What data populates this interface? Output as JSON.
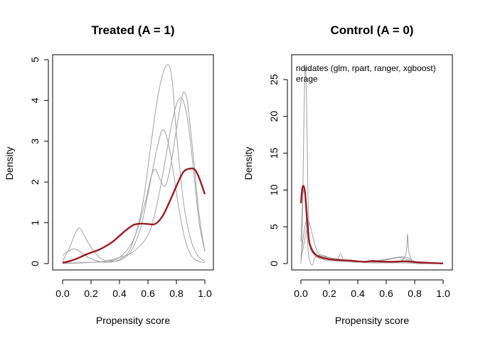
{
  "chart_data": [
    {
      "type": "line",
      "title": "Treated (A = 1)",
      "xlabel": "Propensity score",
      "ylabel": "Density",
      "xlim": [
        0,
        1
      ],
      "ylim": [
        0,
        5
      ],
      "xticks": [
        "0.0",
        "0.2",
        "0.4",
        "0.6",
        "0.8",
        "1.0"
      ],
      "yticks": [
        "0",
        "1",
        "2",
        "3",
        "4",
        "5"
      ],
      "grid": false,
      "legend": null,
      "series": [
        {
          "role": "candidate",
          "color": "#a0a0a0",
          "x": [
            0,
            0.04,
            0.08,
            0.12,
            0.16,
            0.2,
            0.26,
            0.32,
            0.4,
            0.48,
            0.56,
            0.62,
            0.66,
            0.7,
            0.74,
            0.77,
            0.8,
            0.85,
            0.9,
            0.95,
            1.0
          ],
          "y": [
            0.2,
            0.3,
            0.36,
            0.3,
            0.2,
            0.12,
            0.05,
            0.03,
            0.1,
            0.4,
            1.4,
            2.9,
            3.9,
            4.6,
            4.88,
            4.5,
            3.2,
            1.5,
            0.6,
            0.2,
            0.05
          ]
        },
        {
          "role": "candidate",
          "color": "#a0a0a0",
          "x": [
            0,
            0.05,
            0.09,
            0.12,
            0.15,
            0.2,
            0.26,
            0.32,
            0.4,
            0.48,
            0.55,
            0.6,
            0.65,
            0.7,
            0.74,
            0.78,
            0.82,
            0.86,
            0.9,
            0.94,
            1.0
          ],
          "y": [
            0.05,
            0.4,
            0.75,
            0.87,
            0.7,
            0.4,
            0.15,
            0.06,
            0.08,
            0.3,
            0.9,
            1.7,
            2.6,
            3.27,
            3.0,
            2.2,
            1.3,
            0.6,
            0.22,
            0.08,
            0.02
          ]
        },
        {
          "role": "candidate",
          "color": "#a0a0a0",
          "x": [
            0,
            0.1,
            0.2,
            0.3,
            0.4,
            0.5,
            0.58,
            0.62,
            0.65,
            0.68,
            0.72,
            0.76,
            0.8,
            0.84,
            0.86,
            0.88,
            0.92,
            0.96,
            1.0
          ],
          "y": [
            0.01,
            0.02,
            0.03,
            0.05,
            0.15,
            0.6,
            1.5,
            2.1,
            2.32,
            2.1,
            1.9,
            2.4,
            3.3,
            4.1,
            4.18,
            3.9,
            2.6,
            1.2,
            0.3
          ]
        },
        {
          "role": "candidate",
          "color": "#a0a0a0",
          "x": [
            0,
            0.1,
            0.2,
            0.3,
            0.4,
            0.5,
            0.6,
            0.66,
            0.72,
            0.76,
            0.8,
            0.84,
            0.88,
            0.92,
            0.96,
            1.0
          ],
          "y": [
            0.0,
            0.01,
            0.03,
            0.06,
            0.15,
            0.3,
            0.7,
            1.4,
            2.5,
            3.3,
            3.9,
            4.05,
            3.5,
            2.3,
            1.0,
            0.3
          ]
        },
        {
          "role": "ensemble",
          "color": "#9b1b22",
          "x": [
            0,
            0.05,
            0.1,
            0.15,
            0.2,
            0.25,
            0.3,
            0.35,
            0.4,
            0.45,
            0.5,
            0.55,
            0.6,
            0.65,
            0.7,
            0.75,
            0.8,
            0.85,
            0.9,
            0.93,
            0.96,
            1.0
          ],
          "y": [
            0.02,
            0.06,
            0.12,
            0.2,
            0.27,
            0.33,
            0.42,
            0.53,
            0.68,
            0.83,
            0.95,
            0.98,
            0.97,
            0.97,
            1.15,
            1.5,
            1.9,
            2.25,
            2.33,
            2.3,
            2.1,
            1.7
          ]
        }
      ]
    },
    {
      "type": "line",
      "title": "Control (A = 0)",
      "xlabel": "Propensity score",
      "ylabel": "Density",
      "xlim": [
        0,
        1
      ],
      "ylim": [
        0,
        28
      ],
      "xticks": [
        "0.0",
        "0.2",
        "0.4",
        "0.6",
        "0.8",
        "1.0"
      ],
      "yticks": [
        "0",
        "5",
        "10",
        "15",
        "20",
        "25"
      ],
      "grid": false,
      "legend": {
        "placement": "top-left",
        "entries": [
          "ndidates (glm, rpart, ranger, xgboost)",
          "erage"
        ]
      },
      "series": [
        {
          "role": "candidate",
          "color": "#a0a0a0",
          "x": [
            0,
            0.01,
            0.02,
            0.03,
            0.04,
            0.05,
            0.06,
            0.08,
            0.1,
            0.15,
            0.2,
            0.3,
            0.4,
            0.5,
            0.6,
            0.7,
            0.74,
            0.75,
            0.76,
            0.8,
            0.9,
            1.0
          ],
          "y": [
            0,
            5,
            18,
            26.5,
            22,
            9,
            3,
            1.5,
            1.2,
            1.0,
            0.8,
            0.5,
            0.3,
            0.2,
            0.1,
            0.3,
            1.5,
            4.0,
            1.5,
            0.1,
            0,
            0
          ]
        },
        {
          "role": "candidate",
          "color": "#a0a0a0",
          "x": [
            0,
            0.02,
            0.04,
            0.06,
            0.08,
            0.1,
            0.12,
            0.15,
            0.2,
            0.25,
            0.28,
            0.3,
            0.35,
            0.4,
            0.5,
            0.6,
            0.7,
            0.8,
            0.9,
            1.0
          ],
          "y": [
            1,
            4,
            6,
            5.5,
            4,
            2.5,
            1.5,
            0.8,
            0.6,
            0.5,
            1.3,
            0.5,
            0.4,
            0.3,
            0.3,
            0.5,
            0.8,
            0.2,
            0.05,
            0.0
          ]
        },
        {
          "role": "candidate",
          "color": "#a0a0a0",
          "x": [
            0,
            0.01,
            0.02,
            0.03,
            0.04,
            0.05,
            0.06,
            0.08,
            0.1,
            0.14,
            0.2,
            0.3,
            0.4,
            0.5,
            0.6,
            0.7,
            0.8,
            0.9,
            1.0
          ],
          "y": [
            3,
            8,
            10,
            9,
            5,
            2,
            0.5,
            -0.2,
            0.8,
            1.2,
            0.8,
            0.3,
            0.2,
            0.1,
            0.1,
            0.1,
            0.05,
            0.0,
            0.0
          ]
        },
        {
          "role": "candidate",
          "color": "#a0a0a0",
          "x": [
            0,
            0.02,
            0.04,
            0.06,
            0.08,
            0.1,
            0.15,
            0.2,
            0.3,
            0.4,
            0.5,
            0.6,
            0.7,
            0.75,
            0.8,
            0.9,
            1.0
          ],
          "y": [
            0.5,
            2.5,
            4.5,
            3.0,
            1.8,
            1.0,
            0.6,
            0.4,
            0.3,
            0.2,
            0.3,
            0.6,
            0.9,
            0.8,
            0.3,
            0.05,
            0.0
          ]
        },
        {
          "role": "ensemble",
          "color": "#9b1b22",
          "x": [
            0,
            0.01,
            0.02,
            0.03,
            0.04,
            0.05,
            0.06,
            0.08,
            0.1,
            0.12,
            0.15,
            0.2,
            0.25,
            0.3,
            0.35,
            0.4,
            0.45,
            0.5,
            0.55,
            0.6,
            0.65,
            0.7,
            0.75,
            0.8,
            0.85,
            0.9,
            0.95,
            1.0
          ],
          "y": [
            8.2,
            10.2,
            10.5,
            9.5,
            7,
            4.5,
            2.8,
            1.8,
            1.3,
            1.0,
            0.8,
            0.6,
            0.5,
            0.45,
            0.4,
            0.3,
            0.25,
            0.35,
            0.3,
            0.25,
            0.25,
            0.3,
            0.3,
            0.2,
            0.15,
            0.1,
            0.05,
            0.02
          ]
        }
      ]
    }
  ]
}
